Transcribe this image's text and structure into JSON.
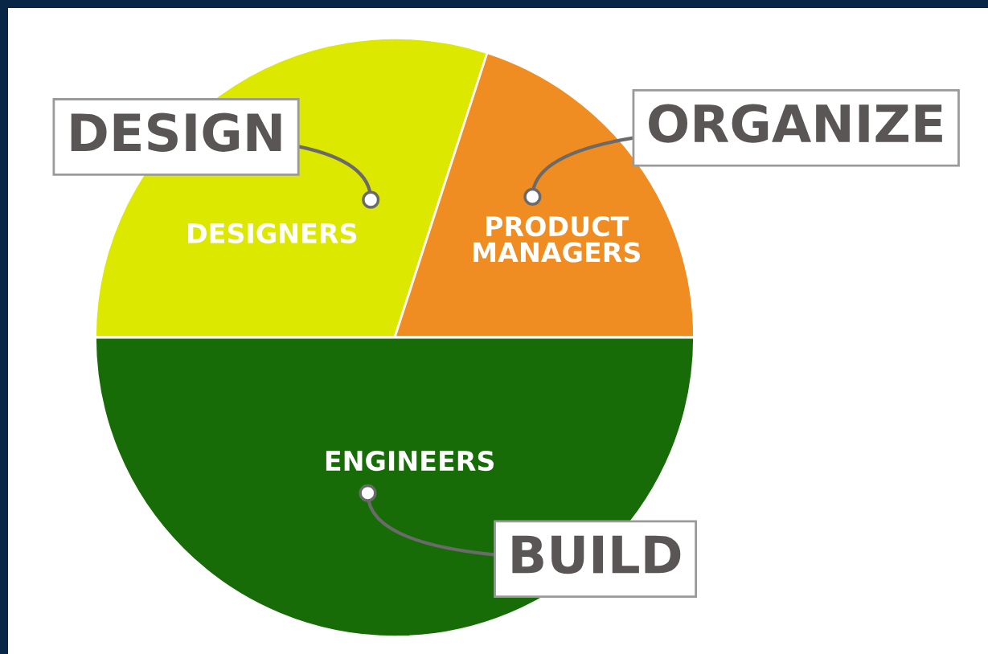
{
  "chart_data": {
    "type": "pie",
    "categories": [
      "DESIGNERS",
      "PRODUCT\nMANAGERS",
      "ENGINEERS"
    ],
    "values": [
      30,
      20,
      50
    ],
    "colors": [
      "#dce800",
      "#ef8c22",
      "#186c07"
    ],
    "annotations": [
      "DESIGN",
      "ORGANIZE",
      "BUILD"
    ]
  }
}
